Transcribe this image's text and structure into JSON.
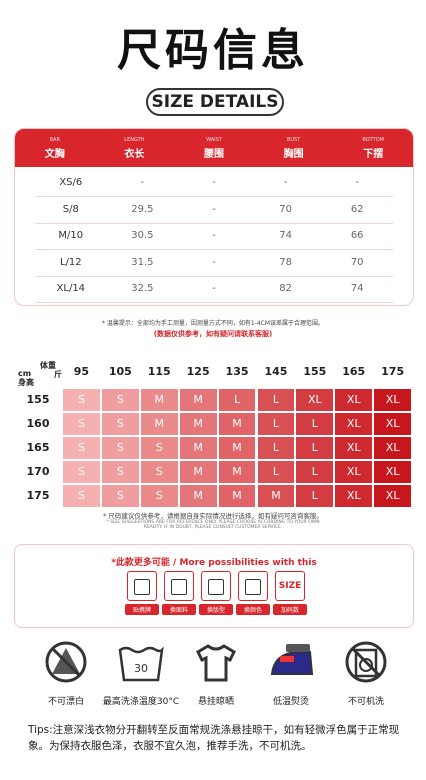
{
  "header": {
    "title": "尺码信息",
    "subtitle": "SIZE DETAILS"
  },
  "size_table": {
    "columns": [
      {
        "en": "BAR",
        "cn": "文胸"
      },
      {
        "en": "LENGTH",
        "cn": "衣长"
      },
      {
        "en": "WAIST",
        "cn": "腰围"
      },
      {
        "en": "BUST",
        "cn": "胸围"
      },
      {
        "en": "BOTTOM",
        "cn": "下摆"
      }
    ],
    "rows": [
      [
        "XS/6",
        "-",
        "-",
        "-",
        "-"
      ],
      [
        "S/8",
        "29.5",
        "-",
        "70",
        "62"
      ],
      [
        "M/10",
        "30.5",
        "-",
        "74",
        "66"
      ],
      [
        "L/12",
        "31.5",
        "-",
        "78",
        "70"
      ],
      [
        "XL/14",
        "32.5",
        "-",
        "82",
        "74"
      ]
    ],
    "note": "* 温馨提示：全部均为手工测量，因测量方式不同，如有1-4CM误差属于合理范围。",
    "note2": "(数据仅供参考，如有疑问请联系客服)"
  },
  "recommend": {
    "weight_label": "体重",
    "weight_unit": "斤",
    "height_unit": "cm",
    "height_label": "身高",
    "weights": [
      "95",
      "105",
      "115",
      "125",
      "135",
      "145",
      "155",
      "165",
      "175"
    ],
    "heights": [
      "155",
      "160",
      "165",
      "170",
      "175"
    ],
    "cells": [
      [
        "S",
        "S",
        "M",
        "M",
        "L",
        "L",
        "XL",
        "XL",
        "XL"
      ],
      [
        "S",
        "S",
        "M",
        "M",
        "M",
        "L",
        "L",
        "XL",
        "XL"
      ],
      [
        "S",
        "S",
        "S",
        "M",
        "M",
        "L",
        "L",
        "XL",
        "XL"
      ],
      [
        "S",
        "S",
        "S",
        "M",
        "M",
        "L",
        "L",
        "XL",
        "XL"
      ],
      [
        "S",
        "S",
        "S",
        "M",
        "M",
        "M",
        "L",
        "XL",
        "XL"
      ]
    ],
    "note": "* 尺码建议仅供参考，请根据自身实际情况进行选择，如有疑问可咨询客服。",
    "note_en": "* SIZE SUGGESTIONS ARE FOR REFERENCE ONLY. PLEASE CHOOSE ACCORDING TO YOUR OWN REALITY. IF IN DOUBT, PLEASE CONSULT CUSTOMER SERVICE."
  },
  "more": {
    "title": "*此款更多可能 / More possibilities with this",
    "options": [
      "贴携牌",
      "换面料",
      "换版型",
      "换颜色",
      "加码数"
    ],
    "size_icon": "SIZE"
  },
  "care": [
    "不可漂白",
    "最高洗涤温度30°C",
    "悬挂晾晒",
    "低温熨烫",
    "不可机洗"
  ],
  "tips": "Tips:注意深浅衣物分开翻转至反面常规洗涤悬挂晾干，如有轻微浮色属于正常现象。为保持衣服色泽，衣服不宜久泡，推荐手洗，不可机洗。"
}
